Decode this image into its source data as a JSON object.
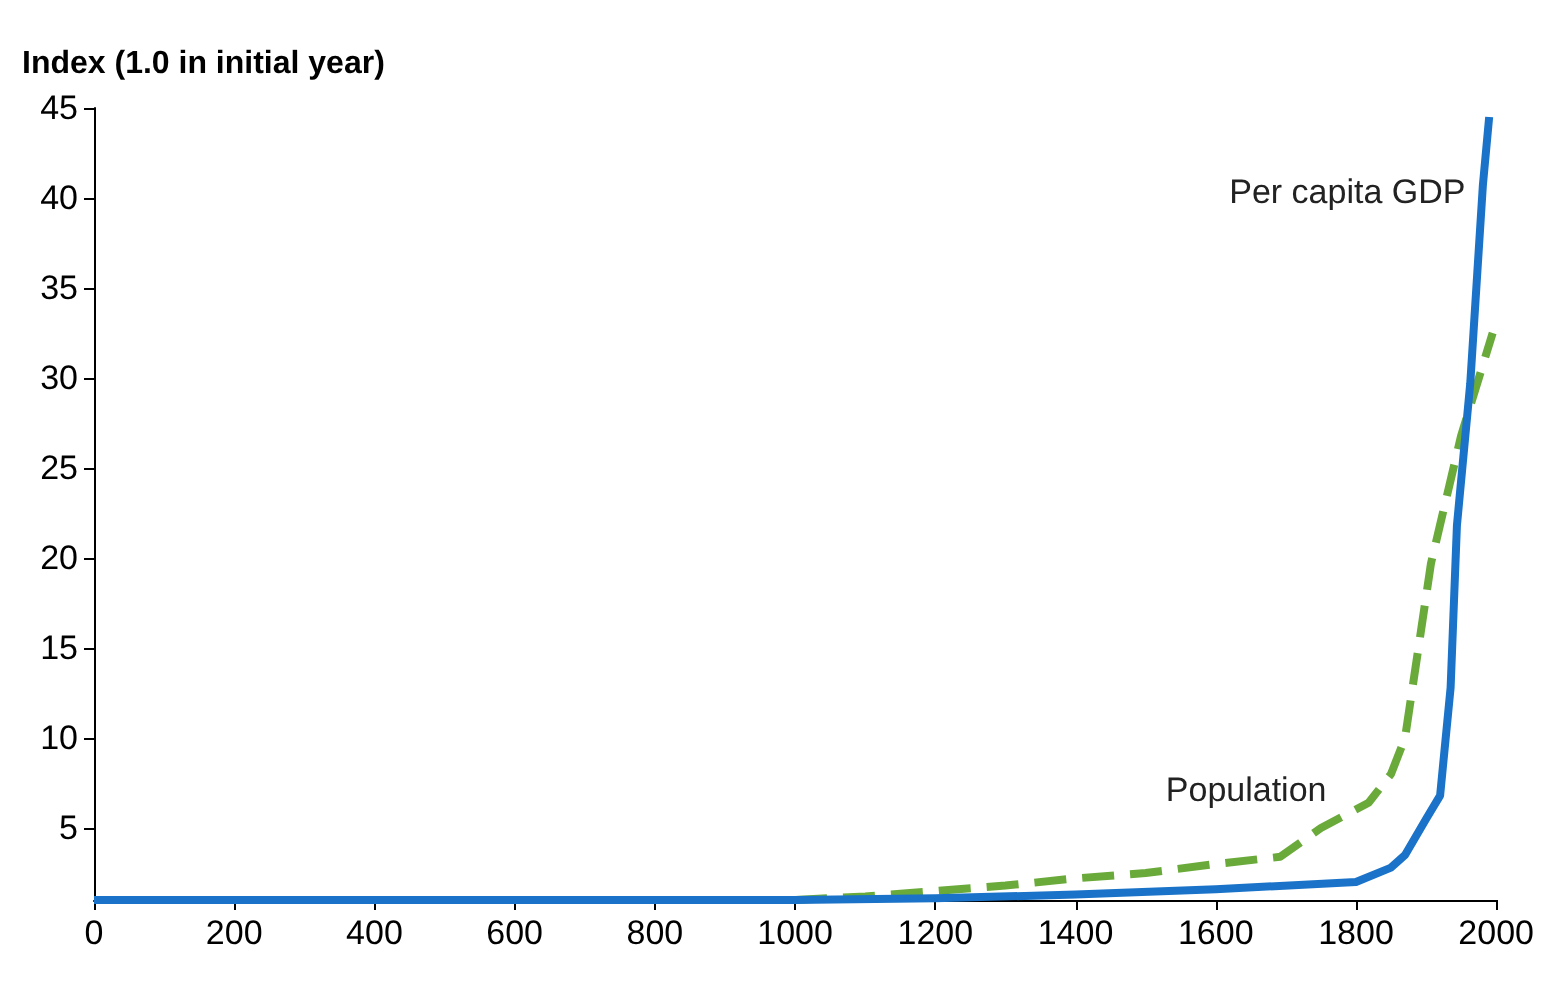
{
  "chart_data": {
    "type": "line",
    "ylabel": "Index (1.0 in initial year)",
    "xlim": [
      0,
      2000
    ],
    "xticks": [
      0,
      200,
      400,
      600,
      800,
      1000,
      1200,
      1400,
      1600,
      1800,
      2000
    ],
    "ylim": [
      1,
      45
    ],
    "yticks": [
      5,
      10,
      15,
      20,
      25,
      30,
      35,
      40,
      45
    ],
    "grid": false,
    "marker": "none",
    "series": [
      {
        "name": "Population",
        "color": "#6aaa3a",
        "line_style": "dashed",
        "x": [
          1000,
          1100,
          1200,
          1300,
          1400,
          1500,
          1600,
          1692,
          1750,
          1818,
          1850,
          1870,
          1907,
          1950,
          1995
        ],
        "values": [
          1,
          1.2,
          1.5,
          1.8,
          2.2,
          2.5,
          3,
          3.4,
          5,
          6.4,
          8,
          10,
          19.7,
          26.8,
          32.5
        ]
      },
      {
        "name": "Per capita GDP",
        "color": "#1a73c8",
        "line_style": "solid",
        "x": [
          0,
          200,
          400,
          600,
          800,
          1000,
          1200,
          1400,
          1600,
          1800,
          1850,
          1870,
          1900,
          1920,
          1935,
          1944,
          1963,
          1981,
          1990
        ],
        "values": [
          1,
          1,
          1,
          1,
          1,
          1,
          1.1,
          1.3,
          1.6,
          2,
          2.8,
          3.5,
          5.5,
          6.8,
          12.8,
          21.8,
          29.7,
          40.7,
          44.5
        ]
      }
    ]
  }
}
